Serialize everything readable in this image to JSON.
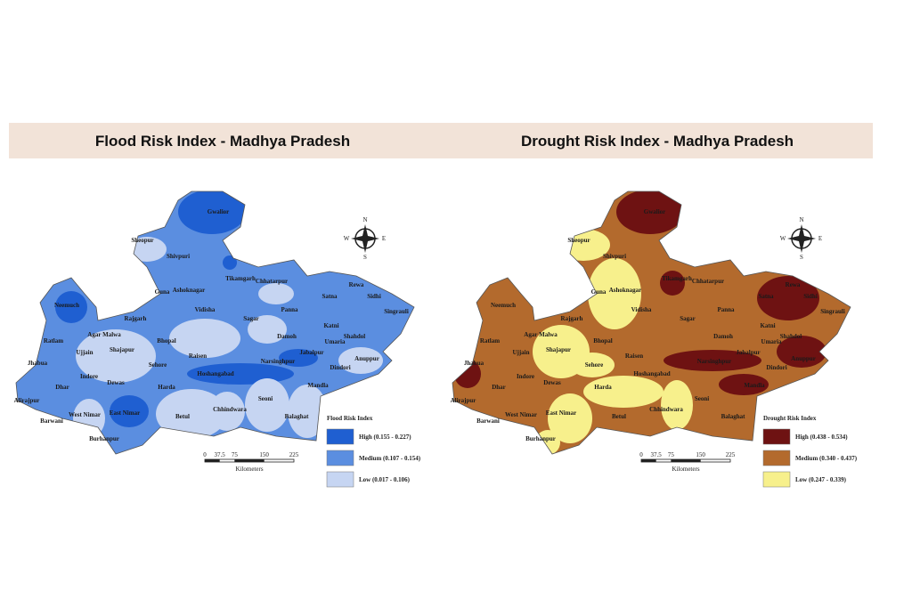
{
  "maps": [
    {
      "title": "Flood Risk Index - Madhya Pradesh",
      "legend": {
        "title": "Flood Risk Index",
        "items": [
          {
            "label": "High (0.155 - 0.227)",
            "color": "#1f5fd1"
          },
          {
            "label": "Medium (0.107 - 0.154)",
            "color": "#5b8ee0"
          },
          {
            "label": "Low (0.017 - 0.106)",
            "color": "#c6d5f2"
          }
        ]
      },
      "scale": {
        "ticks": [
          0,
          37.5,
          75,
          150,
          225
        ],
        "unit": "Kilometers"
      },
      "compass": [
        "N",
        "E",
        "S",
        "W"
      ],
      "districts": [
        "Sheopur",
        "Gwalior",
        "Shivpuri",
        "Guna",
        "Ashoknagar",
        "Tikamgarh",
        "Chhatarpur",
        "Rewa",
        "Neemuch",
        "Agar Malwa",
        "Rajgarh",
        "Vidisha",
        "Sagar",
        "Damoh",
        "Katni",
        "Ujjain",
        "Shajapur",
        "Bhopal",
        "Raisen",
        "Sehore",
        "Dewas",
        "Indore",
        "Dhar",
        "Jhabua",
        "Alirajpur",
        "Barwani",
        "West Nimar",
        "East Nimar",
        "Burhanpur",
        "Harda",
        "Hoshangabad",
        "Narsinghpur",
        "Jabalpur",
        "Betul",
        "Chhindwara",
        "Seoni",
        "Balaghat",
        "Mandla",
        "Dindori",
        "Umaria",
        "Shahdol",
        "Anuppur",
        "Sidhi",
        "Singrauli",
        "Panna",
        "Satna",
        "Ratlam"
      ]
    },
    {
      "title": "Drought Risk Index - Madhya Pradesh",
      "legend": {
        "title": "Drought Risk Index",
        "items": [
          {
            "label": "High (0.438 - 0.534)",
            "color": "#6e1212"
          },
          {
            "label": "Medium (0.340 - 0.437)",
            "color": "#b36a2d"
          },
          {
            "label": "Low (0.247 - 0.339)",
            "color": "#f7f08c"
          }
        ]
      },
      "scale": {
        "ticks": [
          0,
          37.5,
          75,
          150,
          225
        ],
        "unit": "Kilometers"
      },
      "compass": [
        "N",
        "E",
        "S",
        "W"
      ],
      "districts": [
        "Sheopur",
        "Gwalior",
        "Shivpuri",
        "Guna",
        "Ashoknagar",
        "Tikamgarh",
        "Chhatarpur",
        "Rewa",
        "Neemuch",
        "Agar Malwa",
        "Rajgarh",
        "Vidisha",
        "Sagar",
        "Damoh",
        "Katni",
        "Ujjain",
        "Shajapur",
        "Bhopal",
        "Raisen",
        "Sehore",
        "Dewas",
        "Indore",
        "Dhar",
        "Jhabua",
        "Alirajpur",
        "Barwani",
        "West Nimar",
        "East Nimar",
        "Burhanpur",
        "Harda",
        "Hoshangabad",
        "Narsinghpur",
        "Jabalpur",
        "Betul",
        "Chhindwara",
        "Seoni",
        "Balaghat",
        "Mandla",
        "Dindori",
        "Umaria",
        "Shahdol",
        "Anuppur",
        "Sidhi",
        "Singrauli",
        "Panna",
        "Satna",
        "Ratlam"
      ]
    }
  ]
}
